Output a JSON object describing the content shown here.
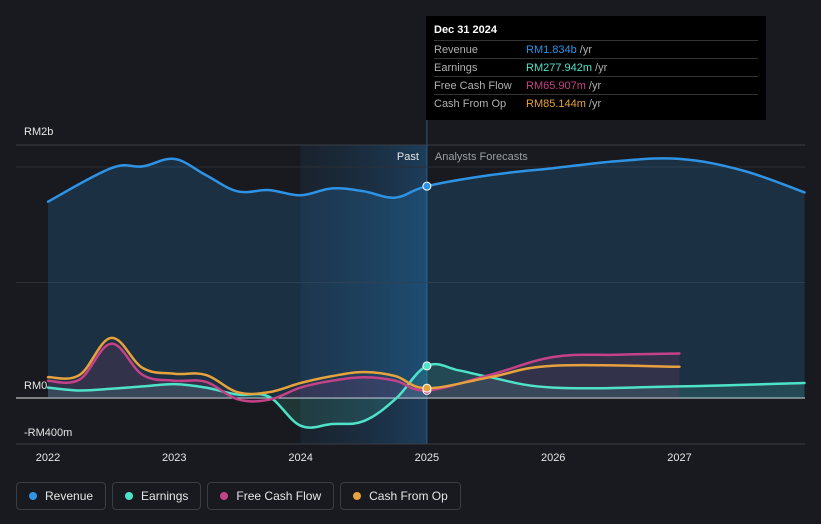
{
  "chart_data": {
    "type": "line",
    "title": "",
    "y_axis": {
      "labels": [
        "RM2b",
        "RM0",
        "-RM400m"
      ],
      "ylim": [
        -400,
        2000
      ],
      "unit": "RM m"
    },
    "x_axis": {
      "ticks": [
        "2022",
        "2023",
        "2024",
        "2025",
        "2026",
        "2027"
      ],
      "xlim": [
        2021.75,
        2027.99
      ]
    },
    "regions": {
      "past_label": "Past",
      "forecast_label": "Analysts Forecasts",
      "highlight_start": 2024.0,
      "divider": 2025.0
    },
    "series": [
      {
        "name": "Revenue",
        "color": "#2e93e4",
        "fill": true,
        "points": [
          [
            2022.0,
            1700
          ],
          [
            2022.5,
            1990
          ],
          [
            2022.75,
            2005
          ],
          [
            2023.0,
            2070
          ],
          [
            2023.25,
            1930
          ],
          [
            2023.5,
            1790
          ],
          [
            2023.75,
            1800
          ],
          [
            2024.0,
            1755
          ],
          [
            2024.25,
            1815
          ],
          [
            2024.5,
            1790
          ],
          [
            2024.75,
            1735
          ],
          [
            2025.0,
            1834
          ],
          [
            2025.5,
            1930
          ],
          [
            2026.0,
            1990
          ],
          [
            2026.5,
            2050
          ],
          [
            2027.0,
            2070
          ],
          [
            2027.5,
            1970
          ],
          [
            2027.99,
            1780
          ]
        ]
      },
      {
        "name": "Earnings",
        "color": "#4ee3c8",
        "fill": true,
        "points": [
          [
            2022.0,
            90
          ],
          [
            2022.25,
            65
          ],
          [
            2022.5,
            80
          ],
          [
            2022.75,
            100
          ],
          [
            2023.0,
            120
          ],
          [
            2023.25,
            90
          ],
          [
            2023.5,
            30
          ],
          [
            2023.75,
            10
          ],
          [
            2024.0,
            -240
          ],
          [
            2024.25,
            -225
          ],
          [
            2024.5,
            -200
          ],
          [
            2024.75,
            -10
          ],
          [
            2025.0,
            278
          ],
          [
            2025.25,
            240
          ],
          [
            2025.5,
            180
          ],
          [
            2026.0,
            90
          ],
          [
            2027.0,
            100
          ],
          [
            2027.99,
            130
          ]
        ]
      },
      {
        "name": "Free Cash Flow",
        "color": "#c64288",
        "fill": true,
        "points": [
          [
            2022.0,
            150
          ],
          [
            2022.25,
            160
          ],
          [
            2022.5,
            470
          ],
          [
            2022.75,
            200
          ],
          [
            2023.0,
            150
          ],
          [
            2023.25,
            140
          ],
          [
            2023.5,
            -10
          ],
          [
            2023.75,
            -15
          ],
          [
            2024.0,
            90
          ],
          [
            2024.25,
            150
          ],
          [
            2024.5,
            180
          ],
          [
            2024.75,
            150
          ],
          [
            2025.0,
            66
          ],
          [
            2025.5,
            200
          ],
          [
            2026.0,
            355
          ],
          [
            2026.5,
            375
          ],
          [
            2027.0,
            385
          ]
        ]
      },
      {
        "name": "Cash From Op",
        "color": "#e6a23c",
        "fill": false,
        "points": [
          [
            2022.0,
            180
          ],
          [
            2022.25,
            200
          ],
          [
            2022.5,
            520
          ],
          [
            2022.75,
            260
          ],
          [
            2023.0,
            210
          ],
          [
            2023.25,
            200
          ],
          [
            2023.5,
            50
          ],
          [
            2023.75,
            50
          ],
          [
            2024.0,
            130
          ],
          [
            2024.25,
            190
          ],
          [
            2024.5,
            225
          ],
          [
            2024.75,
            190
          ],
          [
            2025.0,
            85
          ],
          [
            2025.5,
            180
          ],
          [
            2026.0,
            280
          ],
          [
            2027.0,
            270
          ]
        ]
      }
    ]
  },
  "tooltip": {
    "date": "Dec 31 2024",
    "rows": [
      {
        "label": "Revenue",
        "value": "RM1.834b",
        "unit": "/yr",
        "color": "#2e93e4"
      },
      {
        "label": "Earnings",
        "value": "RM277.942m",
        "unit": "/yr",
        "color": "#4ee3c8"
      },
      {
        "label": "Free Cash Flow",
        "value": "RM65.907m",
        "unit": "/yr",
        "color": "#c64288"
      },
      {
        "label": "Cash From Op",
        "value": "RM85.144m",
        "unit": "/yr",
        "color": "#e6a23c"
      }
    ]
  },
  "legend": [
    {
      "label": "Revenue",
      "color": "#2e93e4"
    },
    {
      "label": "Earnings",
      "color": "#4ee3c8"
    },
    {
      "label": "Free Cash Flow",
      "color": "#c64288"
    },
    {
      "label": "Cash From Op",
      "color": "#e6a23c"
    }
  ]
}
